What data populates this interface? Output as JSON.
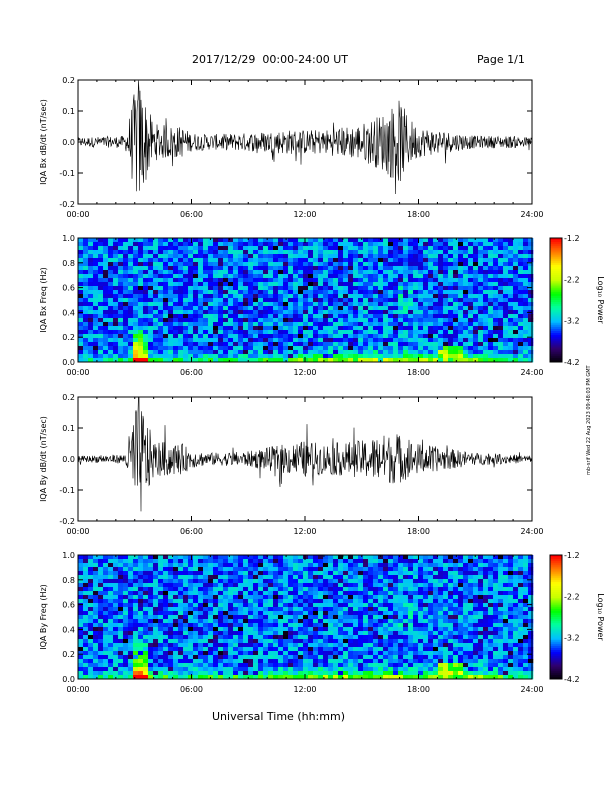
{
  "header": {
    "date_range": "2017/12/29  00:00-24:00 UT",
    "page": "Page 1/1"
  },
  "footer": {
    "x_axis_label": "Universal Time (hh:mm)"
  },
  "side_stamp": "mb-srif Wed 22 Aug 2023 09:48:03 PM GMT",
  "colors": {
    "trace": "#000000",
    "colormap": [
      "#000000",
      "#30006a",
      "#0000ff",
      "#00bfff",
      "#00ffa0",
      "#00ff00",
      "#c8ff00",
      "#ffff00",
      "#ff8000",
      "#ff0000"
    ]
  },
  "chart_data": [
    {
      "type": "line",
      "id": "bx-line",
      "ylabel": "IQA Bx dB/dt (nT/sec)",
      "xlim": [
        0,
        24
      ],
      "ylim": [
        -0.2,
        0.2
      ],
      "x_ticks": [
        "00:00",
        "06:00",
        "12:00",
        "18:00",
        "24:00"
      ],
      "y_ticks": [
        "0.2",
        "0.1",
        "0.0",
        "-0.1",
        "-0.2"
      ],
      "envelope": {
        "x": [
          0,
          2.5,
          2.9,
          3.2,
          3.5,
          4,
          5.5,
          6,
          7,
          9,
          11,
          12,
          13,
          15,
          16,
          17,
          17.5,
          18,
          19,
          20,
          21,
          23,
          24
        ],
        "amplitude": [
          0.015,
          0.02,
          0.14,
          0.22,
          0.15,
          0.06,
          0.05,
          0.03,
          0.025,
          0.03,
          0.04,
          0.04,
          0.04,
          0.06,
          0.09,
          0.14,
          0.08,
          0.05,
          0.04,
          0.03,
          0.02,
          0.02,
          0.015
        ]
      }
    },
    {
      "type": "heatmap",
      "id": "bx-spec",
      "ylabel": "IQA Bx Freq (Hz)",
      "xlim": [
        0,
        24
      ],
      "ylim": [
        0,
        1.0
      ],
      "x_ticks": [
        "00:00",
        "06:00",
        "12:00",
        "18:00",
        "24:00"
      ],
      "y_ticks": [
        "1.0",
        "0.8",
        "0.6",
        "0.4",
        "0.2",
        "0.0"
      ],
      "colorbar": {
        "label": "Log₁₀ Power",
        "range": [
          -4.2,
          -1.2
        ],
        "ticks": [
          "-1.2",
          "-2.2",
          "-3.2",
          "-4.2"
        ]
      }
    },
    {
      "type": "line",
      "id": "by-line",
      "ylabel": "IQA By dB/dt (nT/sec)",
      "xlim": [
        0,
        24
      ],
      "ylim": [
        -0.2,
        0.2
      ],
      "x_ticks": [
        "00:00",
        "06:00",
        "12:00",
        "18:00",
        "24:00"
      ],
      "y_ticks": [
        "0.2",
        "0.1",
        "0.0",
        "-0.1",
        "-0.2"
      ],
      "envelope": {
        "x": [
          0,
          2.5,
          2.9,
          3.2,
          3.5,
          4,
          5.5,
          6,
          7,
          9,
          11,
          12,
          13,
          15,
          16,
          17,
          17.5,
          18,
          19,
          20,
          21,
          23,
          24
        ],
        "amplitude": [
          0.01,
          0.015,
          0.14,
          0.22,
          0.15,
          0.06,
          0.05,
          0.03,
          0.02,
          0.025,
          0.05,
          0.06,
          0.05,
          0.06,
          0.08,
          0.08,
          0.06,
          0.05,
          0.04,
          0.03,
          0.02,
          0.015,
          0.01
        ]
      }
    },
    {
      "type": "heatmap",
      "id": "by-spec",
      "ylabel": "IQA By Freq (Hz)",
      "xlim": [
        0,
        24
      ],
      "ylim": [
        0,
        1.0
      ],
      "x_ticks": [
        "00:00",
        "06:00",
        "12:00",
        "18:00",
        "24:00"
      ],
      "y_ticks": [
        "1.0",
        "0.8",
        "0.6",
        "0.4",
        "0.2",
        "0.0"
      ],
      "colorbar": {
        "label": "Log₁₀ Power",
        "range": [
          -4.2,
          -1.2
        ],
        "ticks": [
          "-1.2",
          "-2.2",
          "-3.2",
          "-4.2"
        ]
      }
    }
  ]
}
